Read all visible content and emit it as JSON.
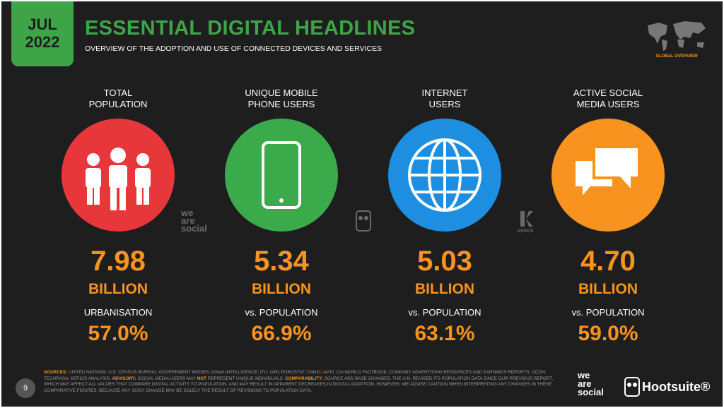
{
  "header": {
    "badge": [
      "JUL",
      "2022"
    ],
    "title": "ESSENTIAL DIGITAL HEADLINES",
    "subtitle": "OVERVIEW OF THE ADOPTION AND USE OF CONNECTED DEVICES AND SERVICES",
    "region": "GLOBAL OVERVIEW"
  },
  "stats": [
    {
      "label": [
        "TOTAL",
        "POPULATION"
      ],
      "value": "7.98",
      "unit": "BILLION",
      "sub_label": "URBANISATION",
      "sub_value": "57.0%"
    },
    {
      "label": [
        "UNIQUE MOBILE",
        "PHONE USERS"
      ],
      "value": "5.34",
      "unit": "BILLION",
      "sub_label": "vs. POPULATION",
      "sub_value": "66.9%"
    },
    {
      "label": [
        "INTERNET",
        "USERS"
      ],
      "value": "5.03",
      "unit": "BILLION",
      "sub_label": "vs. POPULATION",
      "sub_value": "63.1%"
    },
    {
      "label": [
        "ACTIVE SOCIAL",
        "MEDIA USERS"
      ],
      "value": "4.70",
      "unit": "BILLION",
      "sub_label": "vs. POPULATION",
      "sub_value": "59.0%"
    }
  ],
  "watermarks": {
    "we_are_social": [
      "we",
      "are",
      "social"
    ],
    "kepios": "KEPIOS"
  },
  "footer": {
    "page": "9",
    "notes": [
      {
        "text": "SOURCES:",
        "bold": true
      },
      {
        "text": " UNITED NATIONS; U.S. CENSUS BUREAU; GOVERNMENT BODIES; GSMA INTELLIGENCE; ITU; GWI; EUROSTAT; CNNIC; APJII; CIA WORLD FACTBOOK; COMPANY ADVERTISING RESOURCES AND EARNINGS REPORTS; OCDH; TECHRASA; KEPIOS ANALYSIS. ",
        "bold": false
      },
      {
        "text": "ADVISORY:",
        "bold": true
      },
      {
        "text": " SOCIAL MEDIA USERS MAY ",
        "bold": false
      },
      {
        "text": "NOT",
        "bold": true
      },
      {
        "text": " REPRESENT UNIQUE INDIVIDUALS. ",
        "bold": false
      },
      {
        "text": "COMPARABILITY:",
        "bold": true
      },
      {
        "text": " SOURCE AND BASE CHANGES. THE U.N. REVISED ITS POPULATION DATA SINCE OUR PREVIOUS REPORT, WHICH MAY AFFECT ALL VALUES THAT COMPARE DIGITAL ACTIVITY TO POPULATION, AND MAY RESULT IN APPARENT DECREASES IN DIGITAL ADOPTION. HOWEVER, WE ADVISE CAUTION WHEN INTERPRETING ANY CHANGES IN THESE COMPARATIVE FIGURES, BECAUSE ANY SUCH CHANGE MAY BE SOLELY THE RESULT OF REVISIONS TO POPULATION DATA.",
        "bold": false
      }
    ],
    "brand_we_are_social": [
      "we",
      "are",
      "social"
    ],
    "brand_hootsuite": "Hootsuite®"
  }
}
